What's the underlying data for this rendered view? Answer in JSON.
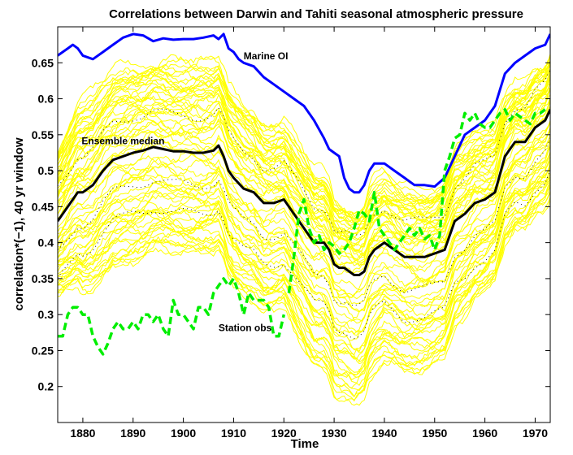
{
  "chart_data": {
    "type": "line",
    "title": "Correlations between Darwin and Tahiti seasonal atmospheric pressure",
    "xlabel": "Time",
    "ylabel": "correlation*(−1), 40 yr window",
    "xlim": [
      1875,
      1973
    ],
    "ylim": [
      0.15,
      0.7
    ],
    "xticks": [
      1880,
      1890,
      1900,
      1910,
      1920,
      1930,
      1940,
      1950,
      1960,
      1970
    ],
    "yticks": [
      0.2,
      0.25,
      0.3,
      0.35,
      0.4,
      0.45,
      0.5,
      0.55,
      0.6,
      0.65
    ],
    "grid": false,
    "ensemble": {
      "name": "Ensemble members",
      "color": "#ffff00",
      "x": [
        1875,
        1880,
        1885,
        1890,
        1895,
        1900,
        1905,
        1908,
        1910,
        1915,
        1920,
        1925,
        1930,
        1934,
        1938,
        1942,
        1946,
        1950,
        1953,
        1956,
        1960,
        1963,
        1966,
        1970,
        1973
      ],
      "median_offset_low": [
        -0.1,
        -0.14,
        -0.15,
        -0.15,
        -0.14,
        -0.14,
        -0.14,
        -0.14,
        -0.15,
        -0.15,
        -0.15,
        -0.17,
        -0.18,
        -0.18,
        -0.17,
        -0.16,
        -0.16,
        -0.15,
        -0.15,
        -0.14,
        -0.13,
        -0.12,
        -0.12,
        -0.12,
        -0.12
      ],
      "median_offset_high": [
        0.1,
        0.12,
        0.12,
        0.12,
        0.12,
        0.12,
        0.12,
        0.12,
        0.12,
        0.11,
        0.1,
        0.1,
        0.09,
        0.09,
        0.09,
        0.09,
        0.09,
        0.09,
        0.1,
        0.1,
        0.09,
        0.08,
        0.08,
        0.08,
        0.08
      ]
    },
    "series": [
      {
        "name": "Marine OI",
        "color": "#0000ff",
        "style": "solid",
        "x": [
          1875,
          1876,
          1877,
          1878,
          1879,
          1880,
          1882,
          1884,
          1886,
          1888,
          1890,
          1892,
          1894,
          1896,
          1898,
          1900,
          1902,
          1904,
          1906,
          1907,
          1908,
          1909,
          1910,
          1911,
          1912,
          1914,
          1916,
          1918,
          1920,
          1922,
          1924,
          1926,
          1928,
          1929,
          1930,
          1931,
          1932,
          1933,
          1934,
          1935,
          1936,
          1937,
          1938,
          1940,
          1942,
          1944,
          1946,
          1948,
          1950,
          1952,
          1954,
          1956,
          1958,
          1960,
          1962,
          1964,
          1966,
          1968,
          1970,
          1972,
          1973
        ],
        "values": [
          0.66,
          0.665,
          0.67,
          0.675,
          0.67,
          0.66,
          0.655,
          0.665,
          0.675,
          0.685,
          0.69,
          0.688,
          0.68,
          0.684,
          0.682,
          0.683,
          0.683,
          0.685,
          0.688,
          0.683,
          0.69,
          0.67,
          0.665,
          0.655,
          0.65,
          0.645,
          0.63,
          0.62,
          0.61,
          0.6,
          0.59,
          0.57,
          0.545,
          0.53,
          0.525,
          0.52,
          0.49,
          0.475,
          0.47,
          0.47,
          0.48,
          0.5,
          0.51,
          0.51,
          0.5,
          0.49,
          0.48,
          0.48,
          0.478,
          0.49,
          0.52,
          0.55,
          0.56,
          0.57,
          0.59,
          0.635,
          0.65,
          0.66,
          0.67,
          0.675,
          0.69
        ]
      },
      {
        "name": "Ensemble median",
        "color": "#000000",
        "style": "solid",
        "x": [
          1875,
          1876,
          1877,
          1878,
          1879,
          1880,
          1882,
          1884,
          1886,
          1888,
          1890,
          1892,
          1894,
          1896,
          1898,
          1900,
          1902,
          1904,
          1906,
          1907,
          1908,
          1909,
          1910,
          1912,
          1914,
          1916,
          1918,
          1920,
          1922,
          1924,
          1926,
          1928,
          1929,
          1930,
          1931,
          1932,
          1933,
          1934,
          1935,
          1936,
          1937,
          1938,
          1940,
          1942,
          1944,
          1946,
          1948,
          1950,
          1952,
          1954,
          1956,
          1958,
          1960,
          1962,
          1964,
          1966,
          1968,
          1970,
          1972,
          1973
        ],
        "values": [
          0.43,
          0.44,
          0.45,
          0.46,
          0.47,
          0.47,
          0.48,
          0.5,
          0.515,
          0.52,
          0.525,
          0.528,
          0.533,
          0.53,
          0.527,
          0.527,
          0.525,
          0.525,
          0.528,
          0.535,
          0.52,
          0.5,
          0.49,
          0.475,
          0.47,
          0.455,
          0.455,
          0.46,
          0.44,
          0.42,
          0.4,
          0.4,
          0.39,
          0.37,
          0.365,
          0.365,
          0.36,
          0.355,
          0.355,
          0.36,
          0.38,
          0.39,
          0.4,
          0.39,
          0.38,
          0.38,
          0.38,
          0.385,
          0.39,
          0.43,
          0.44,
          0.455,
          0.46,
          0.47,
          0.52,
          0.54,
          0.54,
          0.56,
          0.57,
          0.585
        ]
      },
      {
        "name": "Station obs",
        "color": "#00ee00",
        "style": "dashed",
        "x": [
          1875,
          1876,
          1877,
          1878,
          1879,
          1880,
          1881,
          1882,
          1883,
          1884,
          1885,
          1886,
          1887,
          1888,
          1889,
          1890,
          1891,
          1892,
          1893,
          1894,
          1895,
          1896,
          1897,
          1898,
          1899,
          1900,
          1901,
          1902,
          1903,
          1904,
          1905,
          1906,
          1907,
          1908,
          1909,
          1910,
          1911,
          1912,
          1913,
          1914,
          1915,
          1916,
          1917,
          1918,
          1919,
          1920
        ],
        "values": [
          0.27,
          0.27,
          0.3,
          0.31,
          0.31,
          0.3,
          0.3,
          0.27,
          0.255,
          0.245,
          0.26,
          0.28,
          0.29,
          0.28,
          0.28,
          0.29,
          0.28,
          0.3,
          0.3,
          0.29,
          0.3,
          0.28,
          0.27,
          0.32,
          0.3,
          0.3,
          0.29,
          0.28,
          0.31,
          0.31,
          0.3,
          0.33,
          0.34,
          0.35,
          0.34,
          0.35,
          0.33,
          0.3,
          0.33,
          0.32,
          0.32,
          0.32,
          0.31,
          0.27,
          0.27,
          0.3
        ]
      },
      {
        "name": "Station obs (late)",
        "color": "#00ee00",
        "style": "dashed",
        "x": [
          1921,
          1922,
          1923,
          1924,
          1925,
          1926,
          1927,
          1928,
          1929,
          1930,
          1931,
          1932,
          1933,
          1934,
          1935,
          1936,
          1937,
          1938,
          1939,
          1940,
          1941,
          1942,
          1943,
          1944,
          1945,
          1946,
          1947,
          1948,
          1949,
          1950,
          1951,
          1952,
          1953,
          1954,
          1955,
          1956,
          1957,
          1958,
          1959,
          1960,
          1961,
          1962,
          1963,
          1964,
          1965,
          1966,
          1967,
          1968,
          1969,
          1970,
          1971,
          1972
        ],
        "values": [
          0.33,
          0.38,
          0.44,
          0.46,
          0.42,
          0.4,
          0.41,
          0.39,
          0.4,
          0.395,
          0.385,
          0.39,
          0.4,
          0.42,
          0.445,
          0.44,
          0.43,
          0.47,
          0.42,
          0.41,
          0.4,
          0.39,
          0.4,
          0.41,
          0.42,
          0.41,
          0.42,
          0.405,
          0.41,
          0.39,
          0.41,
          0.5,
          0.52,
          0.545,
          0.55,
          0.58,
          0.57,
          0.58,
          0.565,
          0.56,
          0.56,
          0.57,
          0.58,
          0.585,
          0.57,
          0.58,
          0.575,
          0.57,
          0.565,
          0.58,
          0.58,
          0.585
        ]
      }
    ],
    "annotations": [
      {
        "text": "Marine OI",
        "x": 1912,
        "y": 0.655,
        "bind": "annot_marine"
      },
      {
        "text": "Ensemble median",
        "x": 1888,
        "y": 0.537,
        "bind": "annot_median"
      },
      {
        "text": "Station obs",
        "x": 1907,
        "y": 0.277,
        "bind": "annot_station"
      }
    ]
  }
}
